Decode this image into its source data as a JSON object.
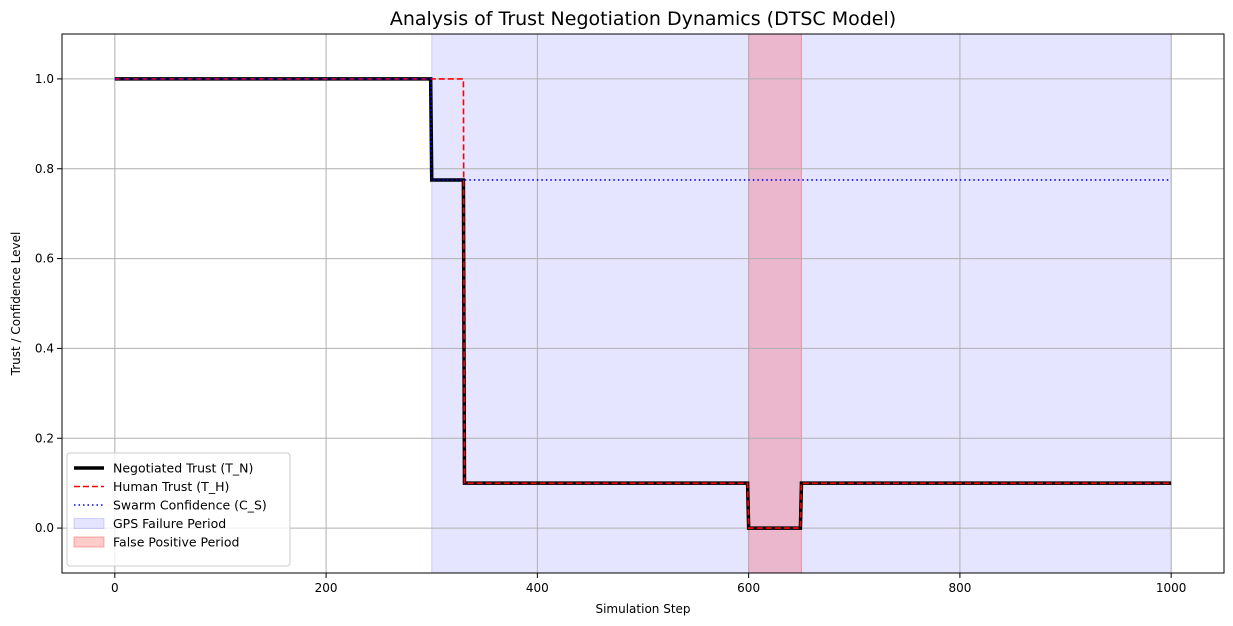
{
  "chart_data": {
    "type": "line",
    "title": "Analysis of Trust Negotiation Dynamics (DTSC Model)",
    "xlabel": "Simulation Step",
    "ylabel": "Trust / Confidence Level",
    "xlim": [
      -50,
      1050
    ],
    "ylim": [
      -0.1,
      1.1
    ],
    "xticks": [
      0,
      200,
      400,
      600,
      800,
      1000
    ],
    "yticks": [
      0.0,
      0.2,
      0.4,
      0.6,
      0.8,
      1.0
    ],
    "grid": true,
    "legend_position": "lower-left",
    "shaded_regions": [
      {
        "name": "GPS Failure Period",
        "x_start": 300,
        "x_end": 1000,
        "color": "#0000ff",
        "opacity": 0.1
      },
      {
        "name": "False Positive Period",
        "x_start": 600,
        "x_end": 650,
        "color": "#ff0000",
        "opacity": 0.2
      }
    ],
    "series": [
      {
        "name": "Negotiated Trust (T_N)",
        "color": "#000000",
        "style": "solid",
        "x": [
          0,
          299,
          300,
          330,
          331,
          599,
          600,
          649,
          650,
          1000
        ],
        "y": [
          1.0,
          1.0,
          0.775,
          0.775,
          0.1,
          0.1,
          0.0,
          0.0,
          0.1,
          0.1
        ]
      },
      {
        "name": "Human Trust (T_H)",
        "color": "#ff0000",
        "style": "dashed",
        "x": [
          0,
          330,
          331,
          599,
          600,
          649,
          650,
          1000
        ],
        "y": [
          1.0,
          1.0,
          0.1,
          0.1,
          0.0,
          0.0,
          0.1,
          0.1
        ]
      },
      {
        "name": "Swarm Confidence (C_S)",
        "color": "#0000ff",
        "style": "dotted",
        "x": [
          0,
          299,
          300,
          1000
        ],
        "y": [
          1.0,
          1.0,
          0.775,
          0.775
        ]
      }
    ]
  }
}
